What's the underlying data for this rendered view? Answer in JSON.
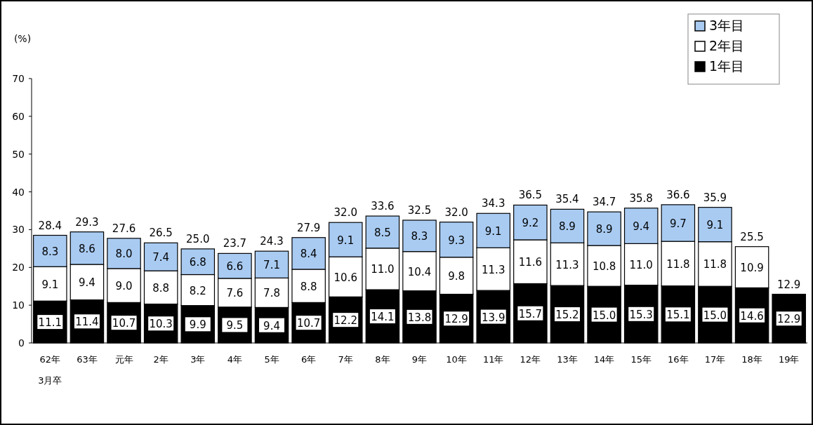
{
  "chart_data": {
    "type": "bar",
    "stacked": true,
    "ylabel": "(%)",
    "categories": [
      "62年",
      "63年",
      "元年",
      "2年",
      "3年",
      "4年",
      "5年",
      "6年",
      "7年",
      "8年",
      "9年",
      "10年",
      "11年",
      "12年",
      "13年",
      "14年",
      "15年",
      "16年",
      "17年",
      "18年",
      "19年"
    ],
    "series": [
      {
        "name": "1年目",
        "color": "#000000",
        "values": [
          11.1,
          11.4,
          10.7,
          10.3,
          9.9,
          9.5,
          9.4,
          10.7,
          12.2,
          14.1,
          13.8,
          12.9,
          13.9,
          15.7,
          15.2,
          15.0,
          15.3,
          15.1,
          15.0,
          14.6,
          12.9
        ],
        "value_labels": [
          "11.1",
          "11.4",
          "10.7",
          "10.3",
          "9.9",
          "9.5",
          "9.4",
          "10.7",
          "12.2",
          "14.1",
          "13.8",
          "12.9",
          "13.9",
          "15.7",
          "15.2",
          "15.0",
          "15.3",
          "15.1",
          "15.0",
          "14.6",
          "12.9"
        ]
      },
      {
        "name": "2年目",
        "color": "#ffffff",
        "values": [
          9.1,
          9.4,
          9.0,
          8.8,
          8.2,
          7.6,
          7.8,
          8.8,
          10.6,
          11.0,
          10.4,
          9.8,
          11.3,
          11.6,
          11.3,
          10.8,
          11.0,
          11.8,
          11.8,
          10.9,
          null
        ],
        "value_labels": [
          "9.1",
          "9.4",
          "9.0",
          "8.8",
          "8.2",
          "7.6",
          "7.8",
          "8.8",
          "10.6",
          "11.0",
          "10.4",
          "9.8",
          "11.3",
          "11.6",
          "11.3",
          "10.8",
          "11.0",
          "11.8",
          "11.8",
          "10.9",
          null
        ]
      },
      {
        "name": "3年目",
        "color": "#a9cbf2",
        "values": [
          8.3,
          8.6,
          8.0,
          7.4,
          6.8,
          6.6,
          7.1,
          8.4,
          9.1,
          8.5,
          8.3,
          9.3,
          9.1,
          9.2,
          8.9,
          8.9,
          9.4,
          9.7,
          9.1,
          null,
          null
        ],
        "value_labels": [
          "8.3",
          "8.6",
          "8.0",
          "7.4",
          "6.8",
          "6.6",
          "7.1",
          "8.4",
          "9.1",
          "8.5",
          "8.3",
          "9.3",
          "9.1",
          "9.2",
          "8.9",
          "8.9",
          "9.4",
          "9.7",
          "9.1",
          null,
          null
        ]
      }
    ],
    "totals": [
      "28.4",
      "29.3",
      "27.6",
      "26.5",
      "25.0",
      "23.7",
      "24.3",
      "27.9",
      "32.0",
      "33.6",
      "32.5",
      "32.0",
      "34.3",
      "36.5",
      "35.4",
      "34.7",
      "35.8",
      "36.6",
      "35.9",
      "25.5",
      "12.9"
    ],
    "ylim": [
      0,
      70
    ],
    "yticks": [
      0,
      10,
      20,
      30,
      40,
      50,
      60,
      70
    ],
    "legend": "top right",
    "annotations": [
      "3月卒"
    ]
  }
}
